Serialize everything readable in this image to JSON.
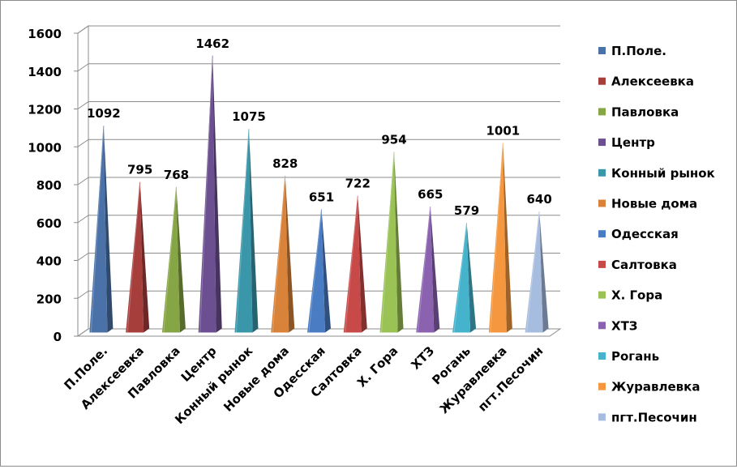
{
  "chart_data": {
    "type": "bar",
    "style": "3d-pyramid",
    "categories": [
      "П.Поле.",
      "Алексеевка",
      "Павловка",
      "Центр",
      "Конный рынок",
      "Новые дома",
      "Одесская",
      "Салтовка",
      "Х. Гора",
      "ХТЗ",
      "Рогань",
      "Журавлевка",
      "пгт.Песочин"
    ],
    "values": [
      1092,
      795,
      768,
      1462,
      1075,
      828,
      651,
      722,
      954,
      665,
      579,
      1001,
      640
    ],
    "value_labels": [
      "1092",
      "795",
      "768",
      "1462",
      "1075",
      "828",
      "651",
      "722",
      "954",
      "665",
      "579",
      "1001",
      "640"
    ],
    "colors": [
      "#4a72a8",
      "#a63e3c",
      "#86a544",
      "#6c4f90",
      "#3a97aa",
      "#d8823a",
      "#4a7cc4",
      "#c84a48",
      "#9ac255",
      "#8a62b0",
      "#46b3cc",
      "#f4973e",
      "#a7bde0"
    ],
    "ylim": [
      0,
      1600
    ],
    "yticks": [
      0,
      200,
      400,
      600,
      800,
      1000,
      1200,
      1400,
      1600
    ],
    "ytick_labels": [
      "0",
      "200",
      "400",
      "600",
      "800",
      "1000",
      "1200",
      "1400",
      "1600"
    ],
    "grid": true,
    "legend": "right",
    "title": "",
    "xlabel": "",
    "ylabel": ""
  }
}
